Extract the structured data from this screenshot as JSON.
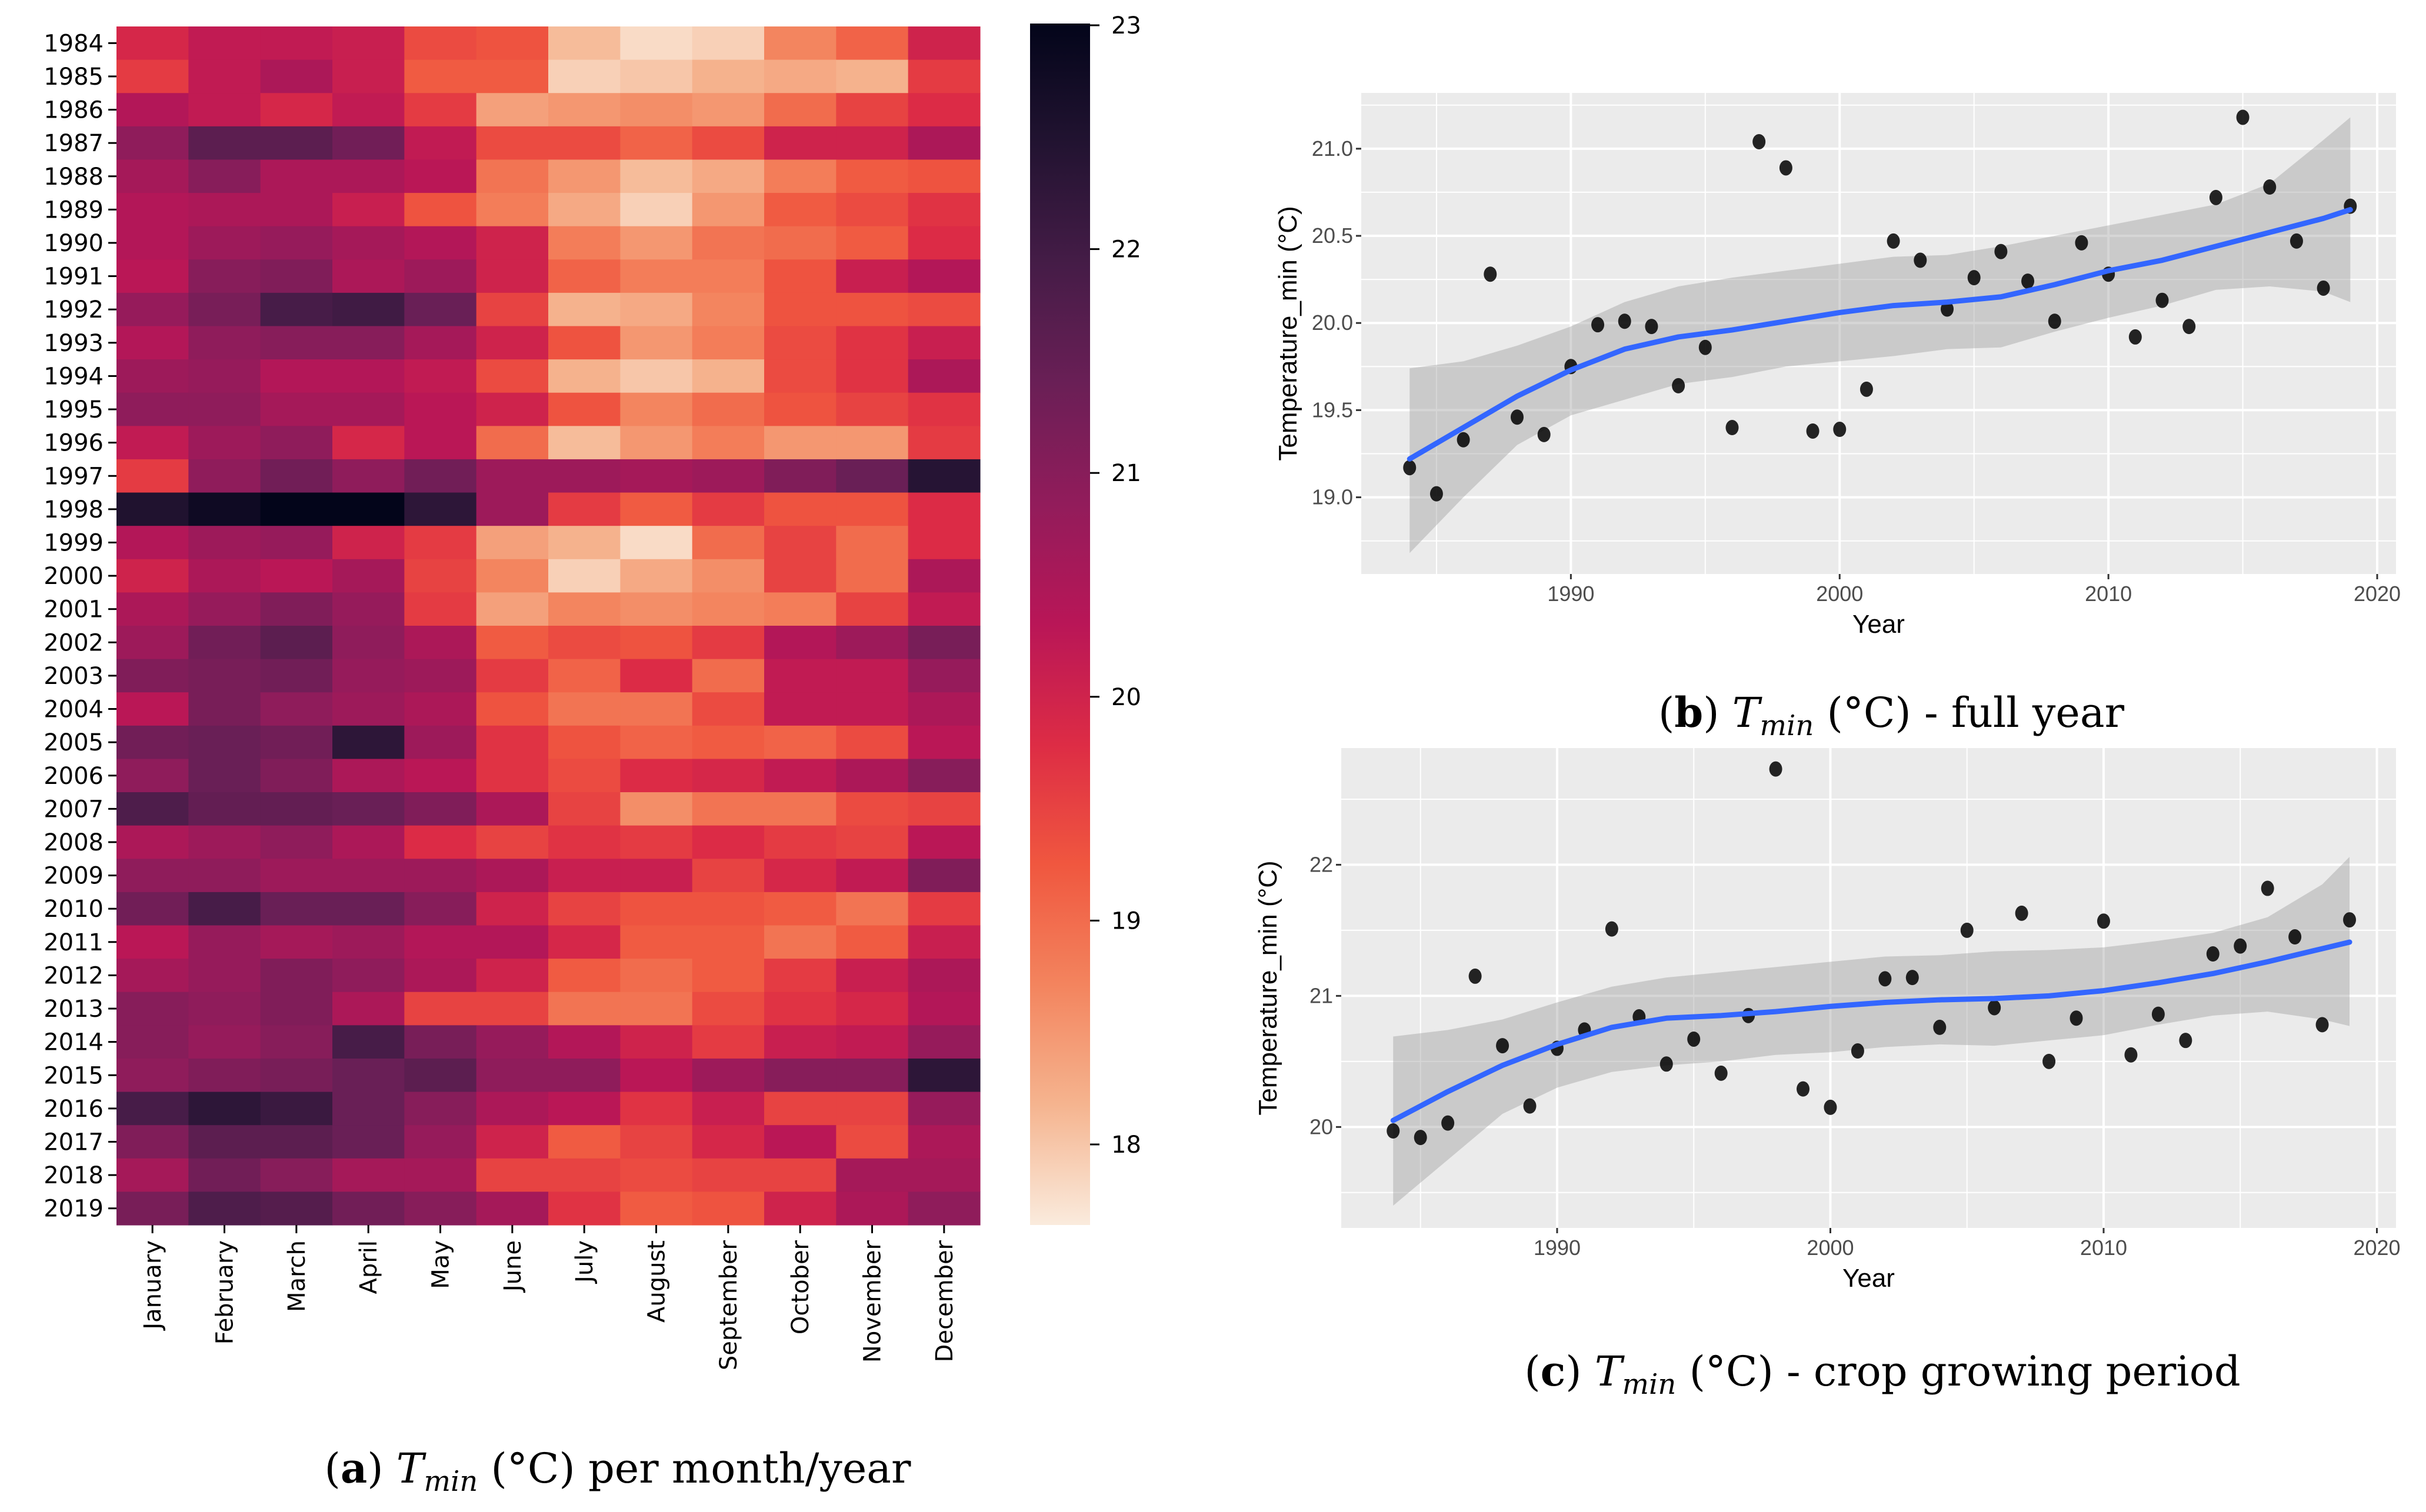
{
  "captions": {
    "a": {
      "label": "a",
      "symbol": "T",
      "sub": "min",
      "text": "(°C) per month/year"
    },
    "b": {
      "label": "b",
      "symbol": "T",
      "sub": "min",
      "text": "(°C) - full year"
    },
    "c": {
      "label": "c",
      "symbol": "T",
      "sub": "min",
      "text": "(°C) - crop growing period"
    }
  },
  "chart_data": [
    {
      "type": "heatmap",
      "colormap": "rocket",
      "colorbar": {
        "range": [
          17.64,
          23
        ],
        "ticks": [
          "18",
          "19",
          "20",
          "21",
          "22",
          "23"
        ]
      },
      "rows": [
        "1984",
        "1985",
        "1986",
        "1987",
        "1988",
        "1989",
        "1990",
        "1991",
        "1992",
        "1993",
        "1994",
        "1995",
        "1996",
        "1997",
        "1998",
        "1999",
        "2000",
        "2001",
        "2002",
        "2003",
        "2004",
        "2005",
        "2006",
        "2007",
        "2008",
        "2009",
        "2010",
        "2011",
        "2012",
        "2013",
        "2014",
        "2015",
        "2016",
        "2017",
        "2018",
        "2019"
      ],
      "columns": [
        "January",
        "February",
        "March",
        "April",
        "May",
        "June",
        "July",
        "August",
        "September",
        "October",
        "November",
        "December"
      ],
      "values": [
        [
          19.9,
          20.2,
          20.2,
          20.1,
          19.4,
          19.3,
          18.1,
          17.8,
          17.9,
          18.7,
          19.1,
          20.0
        ],
        [
          19.6,
          20.2,
          20.5,
          20.1,
          19.2,
          19.2,
          17.9,
          18.0,
          18.2,
          18.3,
          18.2,
          19.6
        ],
        [
          20.4,
          20.2,
          19.9,
          20.2,
          19.6,
          18.4,
          18.5,
          18.6,
          18.5,
          19.0,
          19.5,
          19.8
        ],
        [
          20.9,
          21.6,
          21.6,
          21.3,
          20.2,
          19.4,
          19.4,
          19.1,
          19.4,
          20.0,
          20.0,
          20.5
        ],
        [
          20.6,
          21.0,
          20.5,
          20.5,
          20.3,
          18.9,
          18.5,
          18.1,
          18.3,
          18.8,
          19.2,
          19.3
        ],
        [
          20.4,
          20.5,
          20.5,
          20.1,
          19.3,
          18.8,
          18.3,
          17.9,
          18.5,
          19.2,
          19.4,
          19.7
        ],
        [
          20.4,
          20.7,
          20.8,
          20.6,
          20.4,
          20.0,
          18.8,
          18.5,
          18.9,
          19.0,
          19.2,
          19.8
        ],
        [
          20.3,
          21.0,
          21.1,
          20.5,
          20.7,
          20.0,
          19.1,
          18.8,
          18.8,
          19.3,
          20.1,
          20.4
        ],
        [
          20.8,
          21.2,
          21.9,
          22.0,
          21.4,
          19.5,
          18.2,
          18.3,
          18.7,
          19.3,
          19.3,
          19.4
        ],
        [
          20.4,
          20.9,
          21.0,
          21.0,
          20.6,
          20.0,
          19.3,
          18.5,
          18.8,
          19.4,
          19.7,
          20.1
        ],
        [
          20.7,
          20.8,
          20.4,
          20.4,
          20.2,
          19.4,
          18.2,
          18.0,
          18.2,
          19.4,
          19.7,
          20.5
        ],
        [
          20.9,
          20.9,
          20.6,
          20.6,
          20.3,
          20.0,
          19.3,
          18.7,
          19.0,
          19.3,
          19.5,
          19.7
        ],
        [
          20.2,
          20.7,
          20.9,
          19.9,
          20.3,
          19.0,
          18.1,
          18.5,
          18.8,
          18.5,
          18.5,
          19.6
        ],
        [
          19.6,
          20.9,
          21.3,
          20.9,
          21.3,
          20.7,
          20.7,
          20.6,
          20.7,
          21.1,
          21.4,
          22.4
        ],
        [
          22.5,
          22.8,
          23.0,
          23.0,
          22.3,
          20.7,
          19.6,
          19.2,
          19.6,
          19.3,
          19.3,
          19.8
        ],
        [
          20.4,
          20.7,
          20.8,
          20.0,
          19.6,
          18.4,
          18.2,
          17.8,
          19.0,
          19.5,
          19.0,
          19.8
        ],
        [
          20.0,
          20.5,
          20.3,
          20.6,
          19.5,
          18.7,
          17.9,
          18.3,
          18.6,
          19.5,
          19.0,
          20.5
        ],
        [
          20.5,
          20.8,
          21.1,
          20.8,
          19.6,
          18.4,
          18.7,
          18.6,
          18.7,
          18.8,
          19.5,
          20.2
        ],
        [
          20.7,
          21.3,
          21.6,
          20.9,
          20.5,
          19.2,
          19.4,
          19.3,
          19.6,
          20.4,
          20.7,
          21.2
        ],
        [
          21.1,
          21.2,
          21.3,
          20.8,
          20.7,
          19.6,
          19.1,
          19.8,
          19.0,
          20.2,
          20.2,
          20.8
        ],
        [
          20.3,
          21.2,
          20.9,
          20.7,
          20.5,
          19.3,
          18.9,
          18.9,
          19.4,
          20.2,
          20.2,
          20.5
        ],
        [
          21.3,
          21.4,
          21.3,
          22.3,
          20.7,
          19.7,
          19.3,
          19.1,
          19.2,
          19.1,
          19.4,
          20.3
        ],
        [
          20.9,
          21.4,
          21.1,
          20.5,
          20.3,
          19.7,
          19.4,
          19.8,
          19.9,
          20.2,
          20.5,
          21.0
        ],
        [
          21.8,
          21.5,
          21.5,
          21.4,
          21.1,
          20.5,
          19.5,
          18.6,
          18.9,
          18.9,
          19.4,
          19.5
        ],
        [
          20.5,
          20.7,
          20.9,
          20.5,
          19.8,
          19.5,
          19.7,
          19.6,
          19.8,
          19.6,
          19.5,
          20.3
        ],
        [
          20.9,
          20.9,
          20.7,
          20.7,
          20.7,
          20.5,
          20.1,
          20.1,
          19.5,
          19.9,
          20.2,
          21.1
        ],
        [
          21.3,
          21.9,
          21.4,
          21.4,
          21.0,
          20.0,
          19.5,
          19.3,
          19.3,
          19.2,
          18.9,
          19.6
        ],
        [
          20.3,
          20.8,
          20.6,
          20.7,
          20.4,
          20.4,
          19.9,
          19.2,
          19.2,
          18.9,
          19.2,
          20.1
        ],
        [
          20.6,
          20.8,
          21.1,
          20.9,
          20.5,
          20.0,
          19.2,
          19.0,
          19.2,
          19.6,
          20.1,
          20.5
        ],
        [
          21.0,
          20.9,
          21.1,
          20.5,
          19.5,
          19.5,
          18.9,
          18.9,
          19.4,
          19.7,
          19.9,
          20.4
        ],
        [
          21.0,
          20.8,
          21.0,
          21.9,
          21.2,
          20.8,
          20.4,
          20.0,
          19.6,
          20.1,
          20.2,
          20.8
        ],
        [
          20.9,
          21.1,
          21.2,
          21.4,
          21.6,
          20.9,
          20.9,
          20.3,
          20.7,
          21.0,
          21.0,
          22.3
        ],
        [
          21.9,
          22.3,
          22.1,
          21.4,
          21.0,
          20.5,
          20.3,
          19.7,
          20.1,
          19.5,
          19.5,
          20.8
        ],
        [
          21.1,
          21.6,
          21.6,
          21.4,
          20.8,
          20.0,
          19.2,
          19.5,
          19.9,
          20.3,
          19.4,
          20.5
        ],
        [
          20.6,
          21.3,
          21.0,
          20.6,
          20.6,
          19.5,
          19.5,
          19.4,
          19.5,
          19.5,
          20.6,
          20.6
        ],
        [
          21.2,
          21.8,
          21.7,
          21.3,
          21.0,
          20.6,
          19.7,
          19.2,
          19.3,
          20.0,
          20.5,
          20.9
        ]
      ]
    },
    {
      "type": "scatter",
      "xlabel": "Year",
      "ylabel": "Temperature_min (°C)",
      "xlim": [
        1982.2,
        2020.7
      ],
      "ylim": [
        18.56,
        21.32
      ],
      "xticks": [
        1990,
        2000,
        2010,
        2020
      ],
      "yticks": [
        "19.0",
        "19.5",
        "20.0",
        "20.5",
        "21.0"
      ],
      "grid": true,
      "points": {
        "x": [
          1984,
          1985,
          1986,
          1987,
          1988,
          1989,
          1990,
          1991,
          1992,
          1993,
          1994,
          1995,
          1996,
          1997,
          1998,
          1999,
          2000,
          2001,
          2002,
          2003,
          2004,
          2005,
          2006,
          2007,
          2008,
          2009,
          2010,
          2011,
          2012,
          2013,
          2014,
          2015,
          2016,
          2017,
          2018,
          2019
        ],
        "y": [
          19.17,
          19.02,
          19.33,
          20.28,
          19.46,
          19.36,
          19.75,
          19.99,
          20.01,
          19.98,
          19.64,
          19.86,
          19.4,
          21.04,
          20.89,
          19.38,
          19.39,
          19.62,
          20.47,
          20.36,
          20.08,
          20.26,
          20.41,
          20.24,
          20.01,
          20.46,
          20.28,
          19.92,
          20.13,
          19.98,
          20.72,
          21.18,
          20.78,
          20.47,
          20.2,
          20.67
        ]
      },
      "smooth": {
        "color": "#3366ff",
        "x": [
          1984,
          1986,
          1988,
          1990,
          1992,
          1994,
          1996,
          1998,
          2000,
          2002,
          2004,
          2006,
          2008,
          2010,
          2012,
          2014,
          2016,
          2018,
          2019
        ],
        "y": [
          19.22,
          19.4,
          19.58,
          19.73,
          19.85,
          19.92,
          19.96,
          20.01,
          20.06,
          20.1,
          20.12,
          20.15,
          20.22,
          20.3,
          20.36,
          20.44,
          20.52,
          20.6,
          20.65
        ],
        "lower": [
          18.68,
          19.0,
          19.3,
          19.47,
          19.56,
          19.65,
          19.69,
          19.75,
          19.78,
          19.81,
          19.85,
          19.86,
          19.95,
          20.03,
          20.1,
          20.19,
          20.21,
          20.18,
          20.12
        ],
        "upper": [
          19.74,
          19.78,
          19.87,
          19.98,
          20.12,
          20.21,
          20.26,
          20.3,
          20.34,
          20.38,
          20.39,
          20.44,
          20.5,
          20.56,
          20.62,
          20.68,
          20.8,
          21.05,
          21.18
        ]
      }
    },
    {
      "type": "scatter",
      "xlabel": "Year",
      "ylabel": "Temperature_min (°C)",
      "xlim": [
        1982.1,
        2020.7
      ],
      "ylim": [
        19.23,
        22.89
      ],
      "xticks": [
        1990,
        2000,
        2010,
        2020
      ],
      "yticks": [
        "20",
        "21",
        "22"
      ],
      "grid": true,
      "points": {
        "x": [
          1984,
          1985,
          1986,
          1987,
          1988,
          1989,
          1990,
          1991,
          1992,
          1993,
          1994,
          1995,
          1996,
          1997,
          1998,
          1999,
          2000,
          2001,
          2002,
          2003,
          2004,
          2005,
          2006,
          2007,
          2008,
          2009,
          2010,
          2011,
          2012,
          2013,
          2014,
          2015,
          2016,
          2017,
          2018,
          2019
        ],
        "y": [
          19.97,
          19.92,
          20.03,
          21.15,
          20.62,
          20.16,
          20.6,
          20.74,
          21.51,
          20.84,
          20.48,
          20.67,
          20.41,
          20.85,
          22.73,
          20.29,
          20.15,
          20.58,
          21.13,
          21.14,
          20.76,
          21.5,
          20.91,
          21.63,
          20.5,
          20.83,
          21.57,
          20.55,
          20.86,
          20.66,
          21.32,
          21.38,
          21.82,
          21.45,
          20.78,
          21.58
        ]
      },
      "smooth": {
        "color": "#3366ff",
        "x": [
          1984,
          1986,
          1988,
          1990,
          1992,
          1994,
          1996,
          1998,
          2000,
          2002,
          2004,
          2006,
          2008,
          2010,
          2012,
          2014,
          2016,
          2018,
          2019
        ],
        "y": [
          20.05,
          20.27,
          20.47,
          20.63,
          20.76,
          20.83,
          20.85,
          20.88,
          20.92,
          20.95,
          20.97,
          20.98,
          21.0,
          21.04,
          21.1,
          21.17,
          21.26,
          21.36,
          21.41
        ],
        "lower": [
          19.4,
          19.75,
          20.1,
          20.3,
          20.42,
          20.47,
          20.5,
          20.55,
          20.57,
          20.61,
          20.63,
          20.62,
          20.66,
          20.7,
          20.78,
          20.85,
          20.88,
          20.82,
          20.77
        ],
        "upper": [
          20.69,
          20.74,
          20.82,
          20.95,
          21.07,
          21.14,
          21.18,
          21.22,
          21.26,
          21.3,
          21.31,
          21.34,
          21.35,
          21.37,
          21.42,
          21.48,
          21.6,
          21.85,
          22.06
        ]
      }
    }
  ]
}
